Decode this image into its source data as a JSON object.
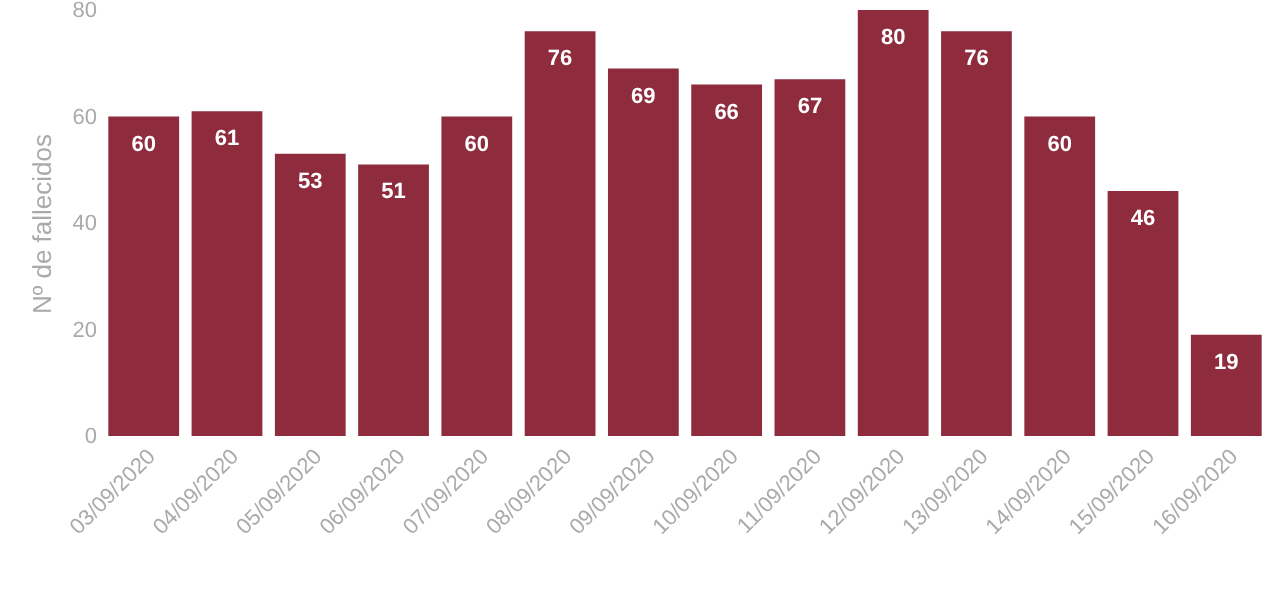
{
  "chart_data": {
    "type": "bar",
    "ylabel": "Nº de fallecidos",
    "categories": [
      "03/09/2020",
      "04/09/2020",
      "05/09/2020",
      "06/09/2020",
      "07/09/2020",
      "08/09/2020",
      "09/09/2020",
      "10/09/2020",
      "11/09/2020",
      "12/09/2020",
      "13/09/2020",
      "14/09/2020",
      "15/09/2020",
      "16/09/2020"
    ],
    "values": [
      60,
      61,
      53,
      51,
      60,
      76,
      69,
      66,
      67,
      80,
      76,
      60,
      46,
      19
    ],
    "color": "#8e2c3e",
    "ylim": [
      0,
      80
    ],
    "yticks": [
      0,
      20,
      40,
      60,
      80
    ],
    "grid": false,
    "data_labels": true
  }
}
